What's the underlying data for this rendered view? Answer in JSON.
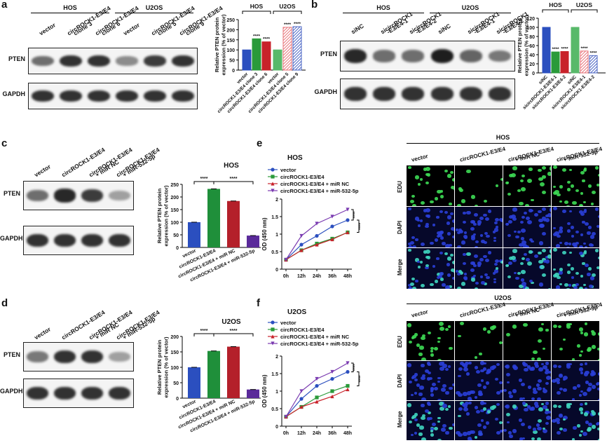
{
  "panels": {
    "a": {
      "label": "a",
      "groups": [
        "HOS",
        "U2OS"
      ],
      "lanes": [
        "vector",
        "circROCK1-E3/E4\nclone 3",
        "circROCK1-E3/E4\nclone 6",
        "vector",
        "circROCK1-E3/E4\nclone 5",
        "circROCK1-E3/E4\nclone 9"
      ],
      "blots": [
        "PTEN",
        "GAPDH"
      ],
      "pten_intensity": [
        0.55,
        0.85,
        0.85,
        0.4,
        0.8,
        0.85
      ],
      "gapdh_intensity": [
        0.85,
        0.85,
        0.85,
        0.85,
        0.85,
        0.85
      ]
    },
    "b": {
      "label": "b",
      "groups": [
        "HOS",
        "U2OS"
      ],
      "lanes": [
        "siNC",
        "sicircROCK1\n-E3/E4-1",
        "sicircROCK1\n-E3/E4-2",
        "siNC",
        "sicircROCK1\n-E3/E4-1",
        "sicircROCK1\n-E3/E4-2"
      ],
      "blots": [
        "PTEN",
        "GAPDH"
      ],
      "pten_intensity": [
        0.9,
        0.55,
        0.55,
        0.95,
        0.6,
        0.5
      ],
      "gapdh_intensity": [
        0.85,
        0.85,
        0.85,
        0.85,
        0.85,
        0.85
      ]
    },
    "c": {
      "label": "c",
      "lanes": [
        "vector",
        "circROCK1-E3/E4",
        "circROCK1-E3/E4\n+ miR NC",
        "circROCK1-E3/E4\n+ miR-532-5p"
      ],
      "blots": [
        "PTEN",
        "GAPDH"
      ],
      "pten_intensity": [
        0.55,
        0.9,
        0.8,
        0.3
      ],
      "gapdh_intensity": [
        0.85,
        0.85,
        0.85,
        0.85
      ]
    },
    "d": {
      "label": "d",
      "lanes": [
        "vector",
        "circROCK1-E3/E4",
        "circROCK1-E3/E4\n+ miR NC",
        "circROCK1-E3/E4\n+ miR-532-5p"
      ],
      "blots": [
        "PTEN",
        "GAPDH"
      ],
      "pten_intensity": [
        0.5,
        0.85,
        0.85,
        0.3
      ],
      "gapdh_intensity": [
        0.85,
        0.85,
        0.85,
        0.85
      ]
    },
    "e": {
      "label": "e"
    },
    "f": {
      "label": "f"
    },
    "micro_hos": {
      "title": "HOS",
      "columns": [
        "vector",
        "circROCK1-E3/E4",
        "circROCK1-E3/E4\n+ miR NC",
        "circROCK1-E3/E4\n+ miR-532-5p"
      ],
      "rows": [
        "EDU",
        "DAPI",
        "Merge"
      ],
      "edu_density": [
        0.6,
        0.3,
        0.45,
        0.7
      ]
    },
    "micro_u2os": {
      "title": "U2OS",
      "columns": [
        "vector",
        "circROCK1-E3/E4",
        "circROCK1-E3/E4\n+ miR NC",
        "circROCK1-E3/E4\n+ miR-532-5p"
      ],
      "rows": [
        "EDU",
        "DAPI",
        "Merge"
      ],
      "edu_density": [
        0.55,
        0.2,
        0.35,
        0.65
      ]
    }
  },
  "chart_data": [
    {
      "id": "a",
      "type": "bar",
      "ylabel": "Relative PTEN protein\nexpression (% of vector)",
      "ylim": [
        0,
        250
      ],
      "yticks": [
        0,
        50,
        100,
        150,
        200,
        250
      ],
      "groups": [
        "HOS",
        "U2OS"
      ],
      "categories": [
        "vector",
        "circROCK1-E3/E4 clone 3",
        "circROCK1-E3/E4 clone 6",
        "vector",
        "circROCK1-E3/E4 clone 5",
        "circROCK1-E3/E4 clone 9"
      ],
      "values": [
        100,
        155,
        140,
        100,
        212,
        215
      ],
      "colors": [
        "#2b4fbf",
        "#2a9a3a",
        "#c8222a",
        "#58b96a",
        "#e8747a",
        "#4a64c4"
      ],
      "hatched": [
        false,
        false,
        false,
        false,
        true,
        true
      ],
      "sig": [
        "",
        "****",
        "****",
        "",
        "****",
        "****"
      ]
    },
    {
      "id": "b",
      "type": "bar",
      "ylabel": "Relative PTEN protein\nexpression (% of vector)",
      "ylim": [
        0,
        120
      ],
      "yticks": [
        0,
        20,
        40,
        60,
        80,
        100,
        120
      ],
      "groups": [
        "HOS",
        "U2OS"
      ],
      "categories": [
        "siNC",
        "sicircROCK1-E3/E4-1",
        "sicircROCK1-E3/E4-2",
        "siNC",
        "sicircROCK1-E3/E4-1",
        "sicircROCK1-E3/E4-2"
      ],
      "values": [
        100,
        46,
        47,
        100,
        48,
        38
      ],
      "colors": [
        "#2b4fbf",
        "#2a9a3a",
        "#c8222a",
        "#58b96a",
        "#e8747a",
        "#4a64c4"
      ],
      "hatched": [
        false,
        false,
        false,
        false,
        true,
        true
      ],
      "sig": [
        "",
        "****",
        "****",
        "",
        "****",
        "****"
      ]
    },
    {
      "id": "c",
      "type": "bar",
      "title": "HOS",
      "ylabel": "Relative PTEN protein\nexpression (% of vector)",
      "ylim": [
        0,
        250
      ],
      "yticks": [
        0,
        50,
        100,
        150,
        200,
        250
      ],
      "categories": [
        "vector",
        "circROCK1-E3/E4",
        "circROCK1-E3/E4 + miR NC",
        "circROCK1-E3/E4 + miR-532-5p"
      ],
      "values": [
        100,
        232,
        184,
        47
      ],
      "colors": [
        "#2b4fbf",
        "#1f8f3a",
        "#b4202a",
        "#5a2a9a"
      ],
      "sig_brackets": [
        {
          "from": 0,
          "to": 1,
          "label": "****"
        },
        {
          "from": 1,
          "to": 3,
          "label": "****"
        }
      ]
    },
    {
      "id": "d",
      "type": "bar",
      "title": "U2OS",
      "ylabel": "Relative PTEN protein\nexpression (% of vector)",
      "ylim": [
        0,
        200
      ],
      "yticks": [
        0,
        50,
        100,
        150,
        200
      ],
      "categories": [
        "vector",
        "circROCK1-E3/E4",
        "circROCK1-E3/E4 + miR NC",
        "circROCK1-E3/E4 + miR-532-5p"
      ],
      "values": [
        100,
        153,
        167,
        28
      ],
      "colors": [
        "#2b4fbf",
        "#1f8f3a",
        "#b4202a",
        "#5a2a9a"
      ],
      "sig_brackets": [
        {
          "from": 0,
          "to": 1,
          "label": "****"
        },
        {
          "from": 1,
          "to": 3,
          "label": "****"
        }
      ]
    },
    {
      "id": "e",
      "type": "line",
      "title": "HOS",
      "xlabel": "",
      "ylabel": "OD (450 nm)",
      "x": [
        "0h",
        "12h",
        "24h",
        "36h",
        "48h"
      ],
      "ylim": [
        0,
        2.0
      ],
      "yticks": [
        0.0,
        0.5,
        1.0,
        1.5,
        2.0
      ],
      "series": [
        {
          "name": "vector",
          "color": "#2b4fbf",
          "marker": "circle",
          "values": [
            0.27,
            0.7,
            0.95,
            1.22,
            1.4
          ]
        },
        {
          "name": "circROCK1-E3/E4",
          "color": "#2a9a3a",
          "marker": "square",
          "values": [
            0.27,
            0.54,
            0.73,
            0.87,
            1.05
          ]
        },
        {
          "name": "circROCK1-E3/E4 + miR NC",
          "color": "#c8222a",
          "marker": "triangle",
          "values": [
            0.27,
            0.54,
            0.7,
            0.85,
            1.05
          ]
        },
        {
          "name": "circROCK1-E3/E4 + miR-532-5p",
          "color": "#7a3ab0",
          "marker": "triangle-down",
          "values": [
            0.27,
            0.95,
            1.3,
            1.5,
            1.7
          ]
        }
      ],
      "sig": [
        "****",
        "****"
      ]
    },
    {
      "id": "f",
      "type": "line",
      "title": "U2OS",
      "xlabel": "",
      "ylabel": "OD (450 nm)",
      "x": [
        "0h",
        "12h",
        "24h",
        "36h",
        "48h"
      ],
      "ylim": [
        0,
        2.0
      ],
      "yticks": [
        0.0,
        0.5,
        1.0,
        1.5,
        2.0
      ],
      "series": [
        {
          "name": "vector",
          "color": "#2b4fbf",
          "marker": "circle",
          "values": [
            0.27,
            0.78,
            1.15,
            1.35,
            1.55
          ]
        },
        {
          "name": "circROCK1-E3/E4",
          "color": "#2a9a3a",
          "marker": "square",
          "values": [
            0.27,
            0.55,
            0.82,
            1.0,
            1.15
          ]
        },
        {
          "name": "circROCK1-E3/E4 + miR NC",
          "color": "#c8222a",
          "marker": "triangle",
          "values": [
            0.27,
            0.55,
            0.7,
            0.85,
            1.05
          ]
        },
        {
          "name": "circROCK1-E3/E4 + miR-532-5p",
          "color": "#7a3ab0",
          "marker": "triangle-down",
          "values": [
            0.27,
            1.0,
            1.35,
            1.55,
            1.8
          ]
        }
      ],
      "sig": [
        "****",
        "****"
      ]
    }
  ]
}
